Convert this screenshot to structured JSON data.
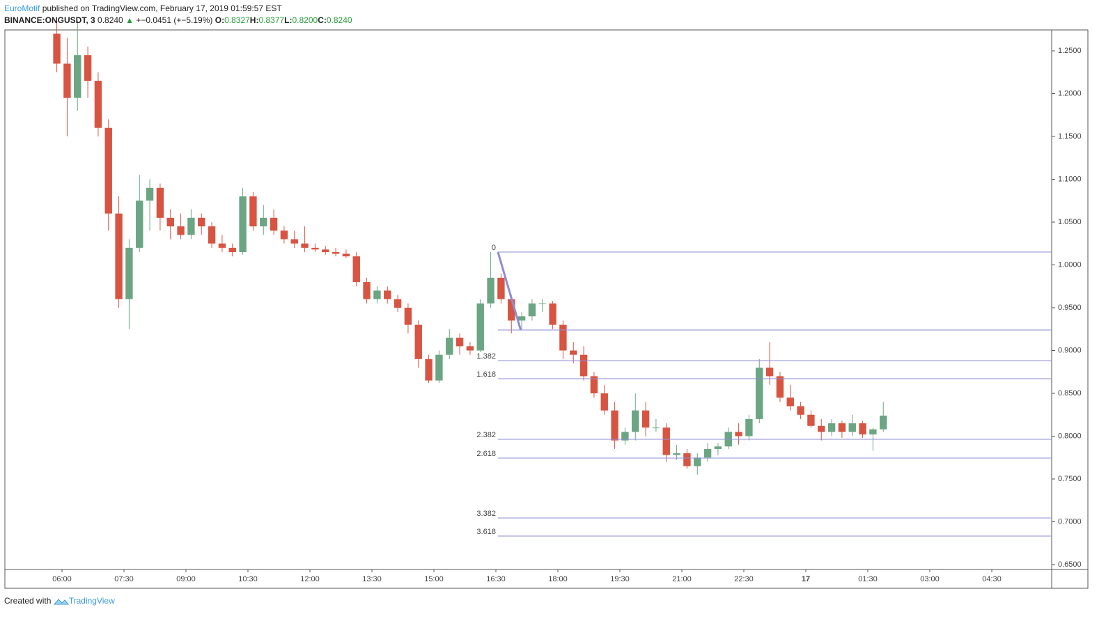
{
  "header": {
    "author": "EuroMotif",
    "published": " published on TradingView.com, February 17, 2019 01:59:57 EST",
    "symbol": "BINANCE:ONGUSDT, 3",
    "last": "0.8240",
    "arrow": "▲",
    "change": "+−0.0451 (+−5.19%)",
    "ohlc": [
      {
        "label": "O:",
        "value": "0.8327"
      },
      {
        "label": "H:",
        "value": "0.8377"
      },
      {
        "label": "L:",
        "value": "0.8200"
      },
      {
        "label": "C:",
        "value": "0.8240"
      }
    ]
  },
  "footer": {
    "text": "Created with",
    "brand": "TradingView"
  },
  "chart_data": {
    "type": "candlestick",
    "up_color": "#6ba583",
    "down_color": "#d75442",
    "x": [
      "05:45",
      "06:00",
      "06:15",
      "06:30",
      "06:45",
      "07:00",
      "07:15",
      "07:30",
      "07:45",
      "08:00",
      "08:15",
      "08:30",
      "08:45",
      "09:00",
      "09:15",
      "09:30",
      "09:45",
      "10:00",
      "10:15",
      "10:30",
      "10:45",
      "11:00",
      "11:15",
      "11:30",
      "11:45",
      "12:00",
      "12:15",
      "12:30",
      "12:45",
      "13:00",
      "13:15",
      "13:30",
      "13:45",
      "14:00",
      "14:15",
      "14:30",
      "14:45",
      "15:00",
      "15:15",
      "15:30",
      "15:45",
      "16:00",
      "16:15",
      "16:30",
      "16:45",
      "17:00",
      "17:15",
      "17:30",
      "17:45",
      "18:00",
      "18:15",
      "18:30",
      "18:45",
      "19:00",
      "19:15",
      "19:30",
      "19:45",
      "20:00",
      "20:15",
      "20:30",
      "20:45",
      "21:00",
      "21:15",
      "21:30",
      "21:45",
      "22:00",
      "22:15",
      "22:30",
      "22:45",
      "23:00",
      "23:15",
      "23:30",
      "23:45",
      "00:00",
      "00:15",
      "00:30",
      "00:45",
      "01:00",
      "01:15",
      "01:30",
      "01:45"
    ],
    "open": [
      1.27,
      1.235,
      1.195,
      1.245,
      1.215,
      1.16,
      1.06,
      0.96,
      1.02,
      1.075,
      1.09,
      1.055,
      1.045,
      1.035,
      1.055,
      1.045,
      1.025,
      1.02,
      1.015,
      1.08,
      1.045,
      1.055,
      1.04,
      1.03,
      1.025,
      1.02,
      1.018,
      1.015,
      1.013,
      1.01,
      0.98,
      0.96,
      0.97,
      0.96,
      0.95,
      0.93,
      0.89,
      0.865,
      0.895,
      0.915,
      0.905,
      0.9,
      0.955,
      0.985,
      0.96,
      0.935,
      0.94,
      0.955,
      0.955,
      0.93,
      0.9,
      0.895,
      0.87,
      0.85,
      0.83,
      0.795,
      0.805,
      0.83,
      0.81,
      0.81,
      0.778,
      0.78,
      0.765,
      0.775,
      0.785,
      0.788,
      0.805,
      0.8,
      0.82,
      0.88,
      0.87,
      0.845,
      0.835,
      0.825,
      0.812,
      0.805,
      0.815,
      0.805,
      0.815,
      0.802,
      0.808
    ],
    "high": [
      1.285,
      1.265,
      1.285,
      1.255,
      1.225,
      1.17,
      1.08,
      1.03,
      1.105,
      1.1,
      1.095,
      1.065,
      1.06,
      1.065,
      1.06,
      1.05,
      1.035,
      1.025,
      1.09,
      1.085,
      1.07,
      1.065,
      1.045,
      1.04,
      1.045,
      1.025,
      1.022,
      1.02,
      1.018,
      1.015,
      0.985,
      0.975,
      0.975,
      0.965,
      0.955,
      0.935,
      0.895,
      0.9,
      0.925,
      0.92,
      0.91,
      0.96,
      1.015,
      0.99,
      0.965,
      0.945,
      0.96,
      0.96,
      0.958,
      0.935,
      0.91,
      0.905,
      0.875,
      0.86,
      0.84,
      0.81,
      0.85,
      0.84,
      0.82,
      0.815,
      0.79,
      0.785,
      0.78,
      0.792,
      0.792,
      0.81,
      0.815,
      0.825,
      0.89,
      0.91,
      0.875,
      0.86,
      0.84,
      0.83,
      0.82,
      0.82,
      0.818,
      0.825,
      0.818,
      0.81,
      0.84
    ],
    "low": [
      1.225,
      1.15,
      1.18,
      1.195,
      1.15,
      1.04,
      0.95,
      0.925,
      1.015,
      1.04,
      1.04,
      1.03,
      1.03,
      1.03,
      1.035,
      1.02,
      1.015,
      1.01,
      1.012,
      1.04,
      1.035,
      1.035,
      1.025,
      1.02,
      1.015,
      1.015,
      1.012,
      1.01,
      1.008,
      0.975,
      0.955,
      0.955,
      0.955,
      0.945,
      0.92,
      0.88,
      0.862,
      0.862,
      0.89,
      0.895,
      0.895,
      0.898,
      0.95,
      0.955,
      0.92,
      0.925,
      0.935,
      0.945,
      0.925,
      0.89,
      0.885,
      0.865,
      0.845,
      0.825,
      0.785,
      0.79,
      0.795,
      0.8,
      0.805,
      0.77,
      0.772,
      0.762,
      0.755,
      0.77,
      0.778,
      0.785,
      0.79,
      0.795,
      0.815,
      0.86,
      0.84,
      0.83,
      0.82,
      0.81,
      0.795,
      0.8,
      0.798,
      0.8,
      0.798,
      0.783,
      0.805
    ],
    "close": [
      1.235,
      1.195,
      1.245,
      1.215,
      1.16,
      1.06,
      0.96,
      1.02,
      1.075,
      1.09,
      1.055,
      1.045,
      1.035,
      1.055,
      1.045,
      1.025,
      1.02,
      1.015,
      1.08,
      1.045,
      1.055,
      1.04,
      1.03,
      1.025,
      1.02,
      1.018,
      1.015,
      1.013,
      1.01,
      0.98,
      0.96,
      0.97,
      0.96,
      0.95,
      0.93,
      0.89,
      0.865,
      0.895,
      0.915,
      0.905,
      0.9,
      0.955,
      0.985,
      0.96,
      0.935,
      0.94,
      0.955,
      0.955,
      0.93,
      0.9,
      0.895,
      0.87,
      0.85,
      0.83,
      0.795,
      0.805,
      0.83,
      0.81,
      0.81,
      0.778,
      0.78,
      0.765,
      0.775,
      0.785,
      0.788,
      0.805,
      0.8,
      0.82,
      0.88,
      0.87,
      0.845,
      0.835,
      0.825,
      0.812,
      0.805,
      0.815,
      0.805,
      0.815,
      0.802,
      0.808,
      0.824
    ],
    "ylim": [
      0.6443,
      1.2744
    ],
    "yticks": [
      {
        "value": 0.65,
        "label": "0.6500"
      },
      {
        "value": 0.7,
        "label": "0.7000"
      },
      {
        "value": 0.75,
        "label": "0.7500"
      },
      {
        "value": 0.8,
        "label": "0.8000"
      },
      {
        "value": 0.85,
        "label": "0.8500"
      },
      {
        "value": 0.9,
        "label": "0.9000"
      },
      {
        "value": 0.95,
        "label": "0.9500"
      },
      {
        "value": 1.0,
        "label": "1.0000"
      },
      {
        "value": 1.05,
        "label": "1.0500"
      },
      {
        "value": 1.1,
        "label": "1.1000"
      },
      {
        "value": 1.15,
        "label": "1.1500"
      },
      {
        "value": 1.2,
        "label": "1.2000"
      },
      {
        "value": 1.25,
        "label": "1.2500"
      }
    ],
    "xticks": [
      "06:00",
      "07:30",
      "09:00",
      "10:30",
      "12:00",
      "13:30",
      "15:00",
      "16:30",
      "18:00",
      "19:30",
      "21:00",
      "22:30",
      "17",
      "01:30",
      "03:00",
      "04:30"
    ],
    "fib_color": "#8c8cd6",
    "trend_line": {
      "x": [
        "16:33",
        "17:06"
      ],
      "y": [
        1.015,
        0.924
      ]
    },
    "fib_levels": [
      {
        "label": "0",
        "value": 1.015
      },
      {
        "label": null,
        "value": 0.924
      },
      {
        "label": "1.382",
        "value": 0.8882
      },
      {
        "label": "1.618",
        "value": 0.8671
      },
      {
        "label": "2.382",
        "value": 0.7963
      },
      {
        "label": "2.618",
        "value": 0.7744
      },
      {
        "label": "3.382",
        "value": 0.7045
      },
      {
        "label": "3.618",
        "value": 0.6833
      }
    ]
  }
}
